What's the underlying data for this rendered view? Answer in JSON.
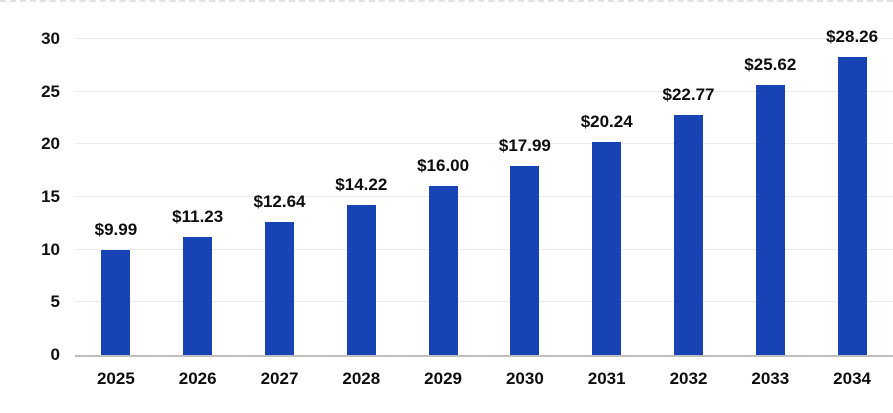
{
  "chart_data": {
    "type": "bar",
    "title": "",
    "categories": [
      "2025",
      "2026",
      "2027",
      "2028",
      "2029",
      "2030",
      "2031",
      "2032",
      "2033",
      "2034"
    ],
    "values": [
      9.99,
      11.23,
      12.64,
      14.22,
      16.0,
      17.99,
      20.24,
      22.77,
      25.62,
      28.26
    ],
    "value_labels": [
      "$9.99",
      "$11.23",
      "$12.64",
      "$14.22",
      "$16.00",
      "$17.99",
      "$20.24",
      "$22.77",
      "$25.62",
      "$28.26"
    ],
    "y_ticks": [
      0,
      5,
      10,
      15,
      20,
      25,
      30
    ],
    "ylim": [
      0,
      30
    ],
    "xlabel": "",
    "ylabel": "",
    "grid": true,
    "legend": "none",
    "bar_color": "#1843b5",
    "gridline_color": "#ebebeb",
    "axis_line_color": "#bfbfbf",
    "text_color": "#0d0d0d"
  }
}
